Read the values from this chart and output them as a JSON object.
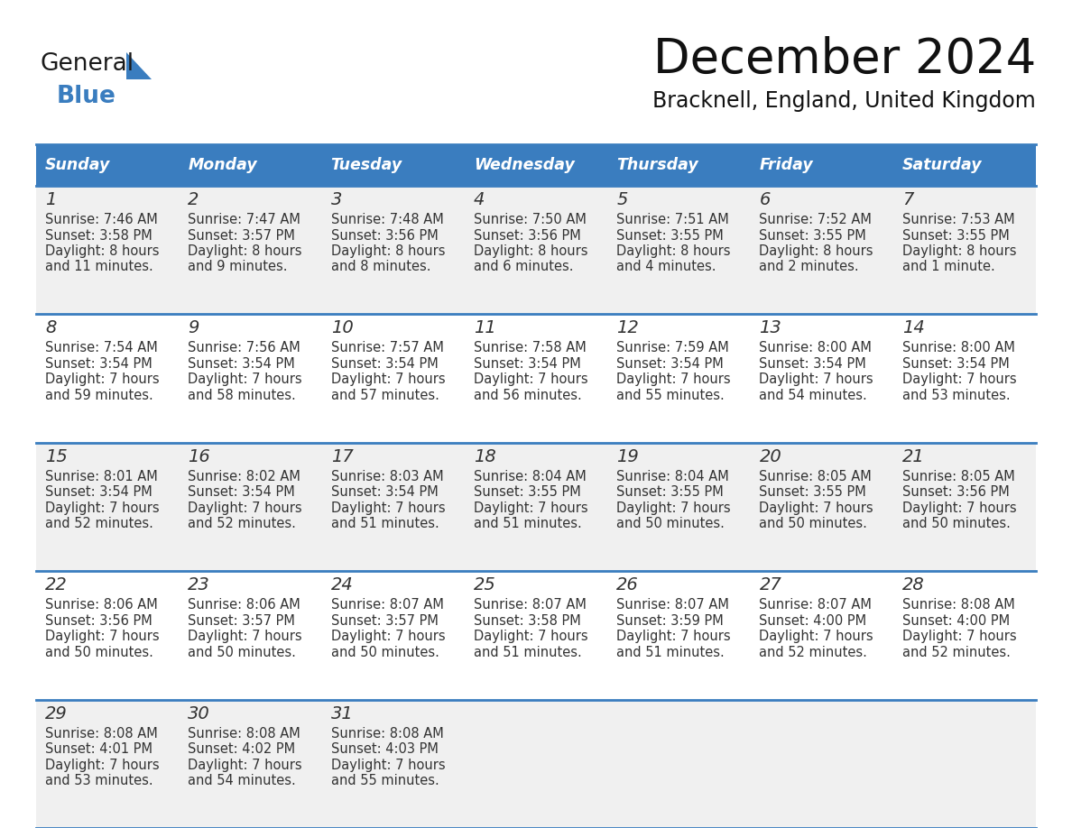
{
  "title": "December 2024",
  "subtitle": "Bracknell, England, United Kingdom",
  "days_of_week": [
    "Sunday",
    "Monday",
    "Tuesday",
    "Wednesday",
    "Thursday",
    "Friday",
    "Saturday"
  ],
  "header_bg": "#3a7dbf",
  "header_text": "#ffffff",
  "row_bg_odd": "#f0f0f0",
  "row_bg_even": "#ffffff",
  "cell_text_color": "#333333",
  "day_num_color": "#333333",
  "grid_line_color": "#3a7dbf",
  "logo_general_color": "#1a1a1a",
  "logo_blue_color": "#3a7dbf",
  "fig_width": 11.88,
  "fig_height": 9.18,
  "dpi": 100,
  "calendar_data": [
    [
      {
        "day": 1,
        "sunrise": "7:46 AM",
        "sunset": "3:58 PM",
        "daylight": "8 hours",
        "daylight2": "and 11 minutes."
      },
      {
        "day": 2,
        "sunrise": "7:47 AM",
        "sunset": "3:57 PM",
        "daylight": "8 hours",
        "daylight2": "and 9 minutes."
      },
      {
        "day": 3,
        "sunrise": "7:48 AM",
        "sunset": "3:56 PM",
        "daylight": "8 hours",
        "daylight2": "and 8 minutes."
      },
      {
        "day": 4,
        "sunrise": "7:50 AM",
        "sunset": "3:56 PM",
        "daylight": "8 hours",
        "daylight2": "and 6 minutes."
      },
      {
        "day": 5,
        "sunrise": "7:51 AM",
        "sunset": "3:55 PM",
        "daylight": "8 hours",
        "daylight2": "and 4 minutes."
      },
      {
        "day": 6,
        "sunrise": "7:52 AM",
        "sunset": "3:55 PM",
        "daylight": "8 hours",
        "daylight2": "and 2 minutes."
      },
      {
        "day": 7,
        "sunrise": "7:53 AM",
        "sunset": "3:55 PM",
        "daylight": "8 hours",
        "daylight2": "and 1 minute."
      }
    ],
    [
      {
        "day": 8,
        "sunrise": "7:54 AM",
        "sunset": "3:54 PM",
        "daylight": "7 hours",
        "daylight2": "and 59 minutes."
      },
      {
        "day": 9,
        "sunrise": "7:56 AM",
        "sunset": "3:54 PM",
        "daylight": "7 hours",
        "daylight2": "and 58 minutes."
      },
      {
        "day": 10,
        "sunrise": "7:57 AM",
        "sunset": "3:54 PM",
        "daylight": "7 hours",
        "daylight2": "and 57 minutes."
      },
      {
        "day": 11,
        "sunrise": "7:58 AM",
        "sunset": "3:54 PM",
        "daylight": "7 hours",
        "daylight2": "and 56 minutes."
      },
      {
        "day": 12,
        "sunrise": "7:59 AM",
        "sunset": "3:54 PM",
        "daylight": "7 hours",
        "daylight2": "and 55 minutes."
      },
      {
        "day": 13,
        "sunrise": "8:00 AM",
        "sunset": "3:54 PM",
        "daylight": "7 hours",
        "daylight2": "and 54 minutes."
      },
      {
        "day": 14,
        "sunrise": "8:00 AM",
        "sunset": "3:54 PM",
        "daylight": "7 hours",
        "daylight2": "and 53 minutes."
      }
    ],
    [
      {
        "day": 15,
        "sunrise": "8:01 AM",
        "sunset": "3:54 PM",
        "daylight": "7 hours",
        "daylight2": "and 52 minutes."
      },
      {
        "day": 16,
        "sunrise": "8:02 AM",
        "sunset": "3:54 PM",
        "daylight": "7 hours",
        "daylight2": "and 52 minutes."
      },
      {
        "day": 17,
        "sunrise": "8:03 AM",
        "sunset": "3:54 PM",
        "daylight": "7 hours",
        "daylight2": "and 51 minutes."
      },
      {
        "day": 18,
        "sunrise": "8:04 AM",
        "sunset": "3:55 PM",
        "daylight": "7 hours",
        "daylight2": "and 51 minutes."
      },
      {
        "day": 19,
        "sunrise": "8:04 AM",
        "sunset": "3:55 PM",
        "daylight": "7 hours",
        "daylight2": "and 50 minutes."
      },
      {
        "day": 20,
        "sunrise": "8:05 AM",
        "sunset": "3:55 PM",
        "daylight": "7 hours",
        "daylight2": "and 50 minutes."
      },
      {
        "day": 21,
        "sunrise": "8:05 AM",
        "sunset": "3:56 PM",
        "daylight": "7 hours",
        "daylight2": "and 50 minutes."
      }
    ],
    [
      {
        "day": 22,
        "sunrise": "8:06 AM",
        "sunset": "3:56 PM",
        "daylight": "7 hours",
        "daylight2": "and 50 minutes."
      },
      {
        "day": 23,
        "sunrise": "8:06 AM",
        "sunset": "3:57 PM",
        "daylight": "7 hours",
        "daylight2": "and 50 minutes."
      },
      {
        "day": 24,
        "sunrise": "8:07 AM",
        "sunset": "3:57 PM",
        "daylight": "7 hours",
        "daylight2": "and 50 minutes."
      },
      {
        "day": 25,
        "sunrise": "8:07 AM",
        "sunset": "3:58 PM",
        "daylight": "7 hours",
        "daylight2": "and 51 minutes."
      },
      {
        "day": 26,
        "sunrise": "8:07 AM",
        "sunset": "3:59 PM",
        "daylight": "7 hours",
        "daylight2": "and 51 minutes."
      },
      {
        "day": 27,
        "sunrise": "8:07 AM",
        "sunset": "4:00 PM",
        "daylight": "7 hours",
        "daylight2": "and 52 minutes."
      },
      {
        "day": 28,
        "sunrise": "8:08 AM",
        "sunset": "4:00 PM",
        "daylight": "7 hours",
        "daylight2": "and 52 minutes."
      }
    ],
    [
      {
        "day": 29,
        "sunrise": "8:08 AM",
        "sunset": "4:01 PM",
        "daylight": "7 hours",
        "daylight2": "and 53 minutes."
      },
      {
        "day": 30,
        "sunrise": "8:08 AM",
        "sunset": "4:02 PM",
        "daylight": "7 hours",
        "daylight2": "and 54 minutes."
      },
      {
        "day": 31,
        "sunrise": "8:08 AM",
        "sunset": "4:03 PM",
        "daylight": "7 hours",
        "daylight2": "and 55 minutes."
      },
      null,
      null,
      null,
      null
    ]
  ]
}
